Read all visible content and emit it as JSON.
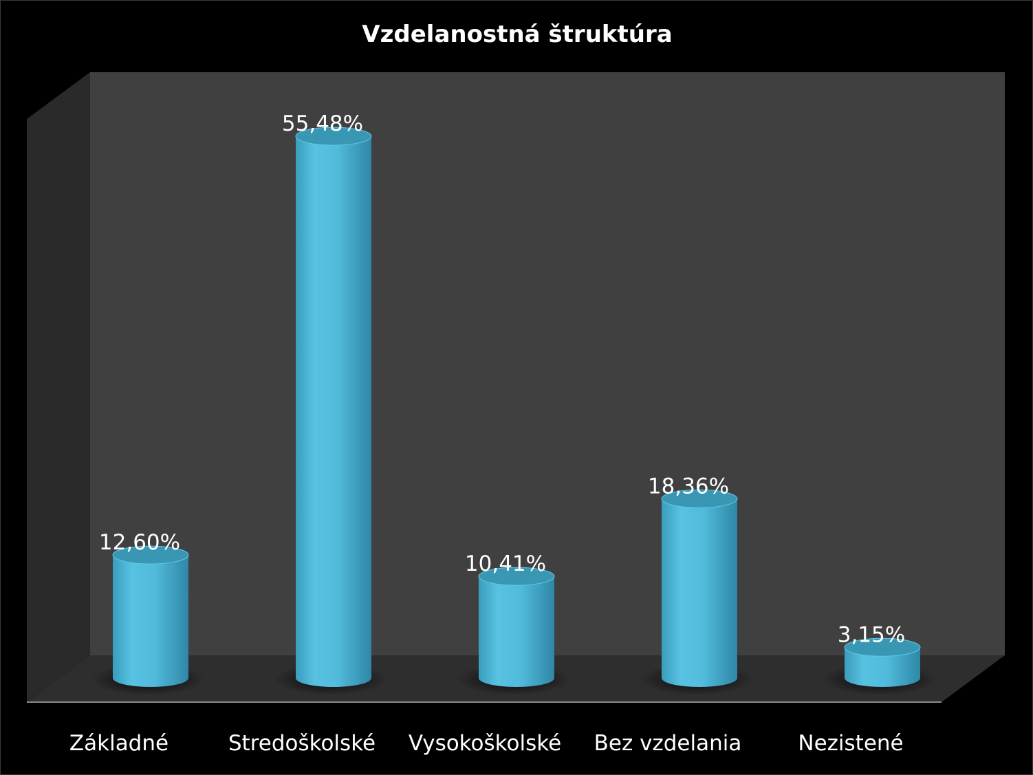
{
  "chart_data": {
    "type": "bar",
    "style": "3d-cylinder",
    "title": "Vzdelanostná štruktúra",
    "categories": [
      "Základné",
      "Stredoškolské",
      "Vysokoškolské",
      "Bez vzdelania",
      "Nezistené"
    ],
    "values": [
      12.6,
      55.48,
      10.41,
      18.36,
      3.15
    ],
    "value_labels": [
      "12,60%",
      "55,48%",
      "10,41%",
      "18,36%",
      "3,15%"
    ],
    "unit": "%",
    "ylim": [
      0,
      60
    ],
    "grid": false,
    "legend": "none"
  },
  "colors": {
    "background": "#000000",
    "plot_back_wall": "#404040",
    "plot_side_wall": "#2a2a2a",
    "plot_floor": "#2e2e2e",
    "bar": "#4fb8d8",
    "bar_top": "#3a97b4",
    "text": "#ffffff"
  }
}
